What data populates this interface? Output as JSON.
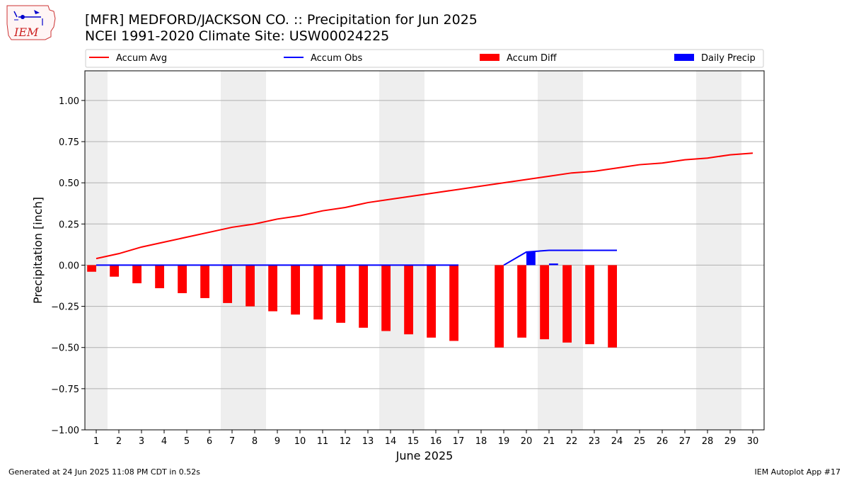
{
  "logo": {
    "text": "IEM",
    "icon": "iem-logo-icon"
  },
  "header": {
    "title_line1": "[MFR] MEDFORD/JACKSON CO. :: Precipitation for Jun 2025",
    "title_line2": "NCEI 1991-2020 Climate Site: USW00024225"
  },
  "footer": {
    "left": "Generated at 24 Jun 2025 11:08 PM CDT in 0.52s",
    "right": "IEM Autoplot App #17"
  },
  "colors": {
    "avg": "#ff0000",
    "obs": "#0000ff",
    "diff": "#ff0000",
    "daily": "#0000ff",
    "weekend": "#eeeeee",
    "grid": "#b0b0b0"
  },
  "chart_data": {
    "type": "bar",
    "xlabel": "June 2025",
    "ylabel": "Precipitation [inch]",
    "xlim": [
      0.5,
      30.5
    ],
    "ylim": [
      -1.0,
      1.18
    ],
    "x_ticks": [
      1,
      2,
      3,
      4,
      5,
      6,
      7,
      8,
      9,
      10,
      11,
      12,
      13,
      14,
      15,
      16,
      17,
      18,
      19,
      20,
      21,
      22,
      23,
      24,
      25,
      26,
      27,
      28,
      29,
      30
    ],
    "y_ticks": [
      -1.0,
      -0.75,
      -0.5,
      -0.25,
      0.0,
      0.25,
      0.5,
      0.75,
      1.0
    ],
    "y_tick_labels": [
      "−1.00",
      "−0.75",
      "−0.50",
      "−0.25",
      "0.00",
      "0.25",
      "0.50",
      "0.75",
      "1.00"
    ],
    "grid": "y",
    "legend_position": "top",
    "weekend_shading": [
      [
        0.5,
        1.5
      ],
      [
        6.5,
        8.5
      ],
      [
        13.5,
        15.5
      ],
      [
        20.5,
        22.5
      ],
      [
        27.5,
        29.5
      ]
    ],
    "series": [
      {
        "name": "Accum Avg",
        "kind": "line",
        "color": "#ff0000",
        "x": [
          1,
          2,
          3,
          4,
          5,
          6,
          7,
          8,
          9,
          10,
          11,
          12,
          13,
          14,
          15,
          16,
          17,
          18,
          19,
          20,
          21,
          22,
          23,
          24,
          25,
          26,
          27,
          28,
          29,
          30
        ],
        "values": [
          0.04,
          0.07,
          0.11,
          0.14,
          0.17,
          0.2,
          0.23,
          0.25,
          0.28,
          0.3,
          0.33,
          0.35,
          0.38,
          0.4,
          0.42,
          0.44,
          0.46,
          0.48,
          0.5,
          0.52,
          0.54,
          0.56,
          0.57,
          0.59,
          0.61,
          0.62,
          0.64,
          0.65,
          0.67,
          0.68
        ]
      },
      {
        "name": "Accum Obs",
        "kind": "line",
        "color": "#0000ff",
        "segments": [
          {
            "x": [
              1,
              2,
              3,
              4,
              5,
              6,
              7,
              8,
              9,
              10,
              11,
              12,
              13,
              14,
              15,
              16,
              17
            ],
            "values": [
              0,
              0,
              0,
              0,
              0,
              0,
              0,
              0,
              0,
              0,
              0,
              0,
              0,
              0,
              0,
              0,
              0
            ]
          },
          {
            "x": [
              19,
              20,
              21,
              22,
              23,
              24
            ],
            "values": [
              0,
              0.08,
              0.09,
              0.09,
              0.09,
              0.09
            ]
          }
        ]
      },
      {
        "name": "Accum Diff",
        "kind": "bar",
        "color": "#ff0000",
        "x": [
          1,
          2,
          3,
          4,
          5,
          6,
          7,
          8,
          9,
          10,
          11,
          12,
          13,
          14,
          15,
          16,
          17,
          19,
          20,
          21,
          22,
          23,
          24
        ],
        "values": [
          -0.04,
          -0.07,
          -0.11,
          -0.14,
          -0.17,
          -0.2,
          -0.23,
          -0.25,
          -0.28,
          -0.3,
          -0.33,
          -0.35,
          -0.38,
          -0.4,
          -0.42,
          -0.44,
          -0.46,
          -0.5,
          -0.44,
          -0.45,
          -0.47,
          -0.48,
          -0.5
        ]
      },
      {
        "name": "Daily Precip",
        "kind": "bar",
        "color": "#0000ff",
        "x": [
          20,
          21
        ],
        "values": [
          0.08,
          0.01
        ]
      }
    ]
  }
}
